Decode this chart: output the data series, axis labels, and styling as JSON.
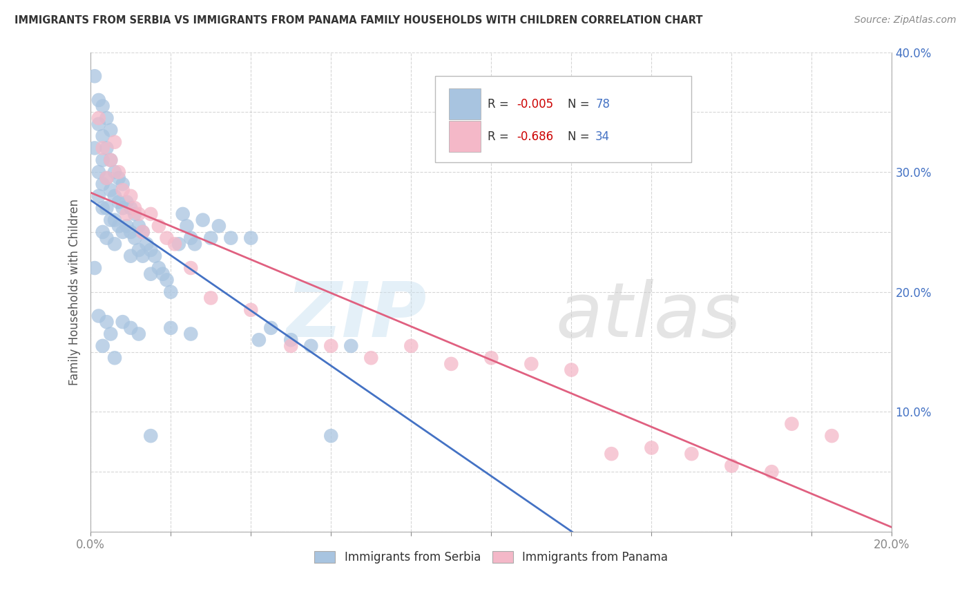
{
  "title": "IMMIGRANTS FROM SERBIA VS IMMIGRANTS FROM PANAMA FAMILY HOUSEHOLDS WITH CHILDREN CORRELATION CHART",
  "source": "Source: ZipAtlas.com",
  "ylabel": "Family Households with Children",
  "xlim": [
    0.0,
    0.2
  ],
  "ylim": [
    0.0,
    0.4
  ],
  "xticks": [
    0.0,
    0.02,
    0.04,
    0.06,
    0.08,
    0.1,
    0.12,
    0.14,
    0.16,
    0.18,
    0.2
  ],
  "yticks": [
    0.0,
    0.05,
    0.1,
    0.15,
    0.2,
    0.25,
    0.3,
    0.35,
    0.4
  ],
  "serbia_color": "#a8c4e0",
  "panama_color": "#f4b8c8",
  "serbia_line_color": "#4472c4",
  "panama_line_color": "#e06080",
  "serbia_R": -0.005,
  "serbia_N": 78,
  "panama_R": -0.686,
  "panama_N": 34,
  "serbia_label": "Immigrants from Serbia",
  "panama_label": "Immigrants from Panama",
  "grid_color": "#cccccc",
  "serbia_x": [
    0.001,
    0.001,
    0.002,
    0.002,
    0.002,
    0.002,
    0.003,
    0.003,
    0.003,
    0.003,
    0.003,
    0.003,
    0.004,
    0.004,
    0.004,
    0.004,
    0.004,
    0.005,
    0.005,
    0.005,
    0.005,
    0.006,
    0.006,
    0.006,
    0.006,
    0.007,
    0.007,
    0.007,
    0.008,
    0.008,
    0.008,
    0.009,
    0.009,
    0.01,
    0.01,
    0.01,
    0.011,
    0.011,
    0.012,
    0.012,
    0.013,
    0.013,
    0.014,
    0.015,
    0.015,
    0.016,
    0.017,
    0.018,
    0.019,
    0.02,
    0.022,
    0.023,
    0.024,
    0.025,
    0.026,
    0.028,
    0.03,
    0.032,
    0.035,
    0.04,
    0.042,
    0.045,
    0.05,
    0.055,
    0.06,
    0.065,
    0.001,
    0.002,
    0.003,
    0.004,
    0.005,
    0.006,
    0.008,
    0.01,
    0.012,
    0.015,
    0.02,
    0.025
  ],
  "serbia_y": [
    0.38,
    0.32,
    0.36,
    0.34,
    0.3,
    0.28,
    0.355,
    0.33,
    0.31,
    0.29,
    0.27,
    0.25,
    0.345,
    0.32,
    0.295,
    0.27,
    0.245,
    0.335,
    0.31,
    0.285,
    0.26,
    0.3,
    0.28,
    0.26,
    0.24,
    0.295,
    0.275,
    0.255,
    0.29,
    0.27,
    0.25,
    0.275,
    0.255,
    0.27,
    0.25,
    0.23,
    0.265,
    0.245,
    0.255,
    0.235,
    0.25,
    0.23,
    0.24,
    0.235,
    0.215,
    0.23,
    0.22,
    0.215,
    0.21,
    0.2,
    0.24,
    0.265,
    0.255,
    0.245,
    0.24,
    0.26,
    0.245,
    0.255,
    0.245,
    0.245,
    0.16,
    0.17,
    0.16,
    0.155,
    0.08,
    0.155,
    0.22,
    0.18,
    0.155,
    0.175,
    0.165,
    0.145,
    0.175,
    0.17,
    0.165,
    0.08,
    0.17,
    0.165
  ],
  "panama_x": [
    0.002,
    0.003,
    0.004,
    0.005,
    0.006,
    0.007,
    0.008,
    0.009,
    0.01,
    0.011,
    0.012,
    0.013,
    0.015,
    0.017,
    0.019,
    0.021,
    0.025,
    0.03,
    0.04,
    0.05,
    0.06,
    0.07,
    0.08,
    0.09,
    0.1,
    0.11,
    0.12,
    0.13,
    0.14,
    0.15,
    0.16,
    0.17,
    0.175,
    0.185
  ],
  "panama_y": [
    0.345,
    0.32,
    0.295,
    0.31,
    0.325,
    0.3,
    0.285,
    0.265,
    0.28,
    0.27,
    0.265,
    0.25,
    0.265,
    0.255,
    0.245,
    0.24,
    0.22,
    0.195,
    0.185,
    0.155,
    0.155,
    0.145,
    0.155,
    0.14,
    0.145,
    0.14,
    0.135,
    0.065,
    0.07,
    0.065,
    0.055,
    0.05,
    0.09,
    0.08
  ]
}
